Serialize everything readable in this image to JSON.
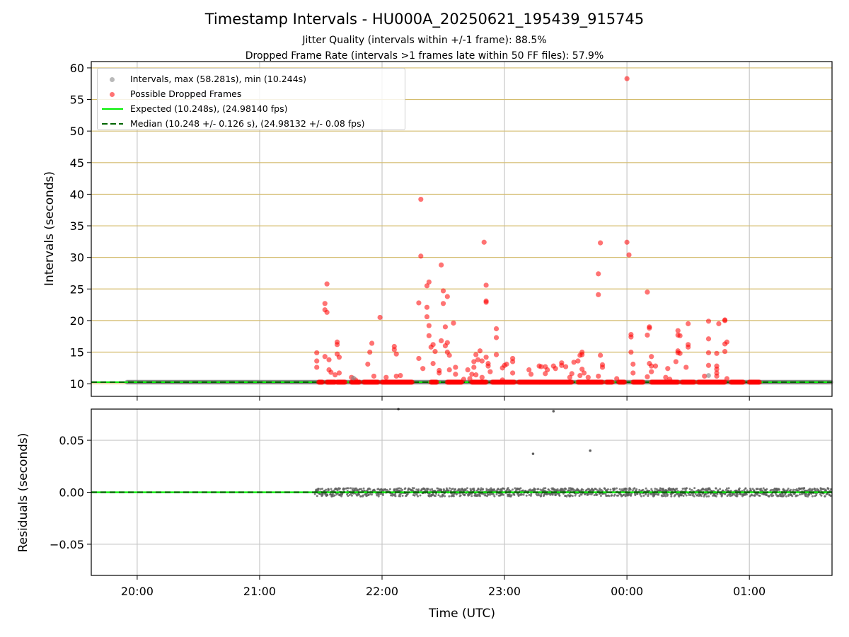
{
  "chart_data": [
    {
      "type": "scatter",
      "title": "Timestamp Intervals - HU000A_20250621_195439_915745",
      "subtitle_lines": [
        "Jitter Quality (intervals within +/-1 frame): 88.5%",
        "Dropped Frame Rate (intervals >1 frames late within 50 FF files): 57.9%"
      ],
      "xlabel": "",
      "ylabel": "Intervals (seconds)",
      "x_ticks": [
        "20:00",
        "21:00",
        "22:00",
        "23:00",
        "00:00",
        "01:00"
      ],
      "xlim": [
        "19:37:30",
        "01:40:30"
      ],
      "ylim": [
        8,
        61
      ],
      "y_ticks": [
        "10",
        "15",
        "20",
        "25",
        "30",
        "35",
        "40",
        "45",
        "50",
        "55",
        "60"
      ],
      "grid": true,
      "legend_position": "top-left",
      "legend": [
        "Intervals, max (58.281s), min (10.244s)",
        "Possible Dropped Frames",
        "Expected (10.248s), (24.98140 fps)",
        "Median (10.248 +/- 0.126 s), (24.98132 +/- 0.08 fps)"
      ],
      "colors": {
        "intervals": "#808080",
        "dropped": "#ff0000",
        "expected": "#00ee00",
        "median": "#006400",
        "band_grid": "#d4bc6e"
      },
      "baseline_interval": 10.248,
      "baseline_span": [
        "19:55",
        "01:40"
      ],
      "dropped_frame_bursts": [
        [
          "21:29",
          "21:31"
        ],
        [
          "21:33",
          "21:37"
        ],
        [
          "21:38",
          "21:42"
        ],
        [
          "21:45",
          "21:49"
        ],
        [
          "21:51",
          "21:58"
        ],
        [
          "22:00",
          "22:15"
        ],
        [
          "22:24",
          "22:27"
        ],
        [
          "22:32",
          "22:39"
        ],
        [
          "22:44",
          "22:51"
        ],
        [
          "22:54",
          "23:05"
        ],
        [
          "23:07",
          "23:33"
        ],
        [
          "23:36",
          "23:48"
        ],
        [
          "23:50",
          "23:53"
        ],
        [
          "23:56",
          "23:59"
        ],
        [
          "00:03",
          "00:08"
        ],
        [
          "00:12",
          "00:25"
        ],
        [
          "00:27",
          "00:33"
        ],
        [
          "00:35",
          "00:48"
        ],
        [
          "00:51",
          "00:57"
        ],
        [
          "01:00",
          "01:05"
        ]
      ],
      "dropped_frames": [
        [
          "21:28",
          14.9
        ],
        [
          "21:28",
          13.6
        ],
        [
          "21:28",
          12.6
        ],
        [
          "21:32",
          22.7
        ],
        [
          "21:32",
          21.7
        ],
        [
          "21:33",
          21.3
        ],
        [
          "21:33",
          25.8
        ],
        [
          "21:32",
          14.3
        ],
        [
          "21:34",
          13.8
        ],
        [
          "21:34",
          12.2
        ],
        [
          "21:35",
          11.8
        ],
        [
          "21:37",
          11.4
        ],
        [
          "21:38",
          16.6
        ],
        [
          "21:38",
          16.2
        ],
        [
          "21:38",
          14.7
        ],
        [
          "21:39",
          14.2
        ],
        [
          "21:39",
          11.7
        ],
        [
          "21:45",
          11.0
        ],
        [
          "21:47",
          10.6
        ],
        [
          "21:53",
          13.1
        ],
        [
          "21:54",
          15.0
        ],
        [
          "21:55",
          16.4
        ],
        [
          "21:56",
          11.2
        ],
        [
          "21:59",
          20.5
        ],
        [
          "22:02",
          11.0
        ],
        [
          "22:06",
          15.9
        ],
        [
          "22:06",
          15.4
        ],
        [
          "22:07",
          11.2
        ],
        [
          "22:07",
          14.7
        ],
        [
          "22:09",
          11.3
        ],
        [
          "22:18",
          22.8
        ],
        [
          "22:18",
          14.0
        ],
        [
          "22:19",
          39.2
        ],
        [
          "22:19",
          30.2
        ],
        [
          "22:20",
          12.4
        ],
        [
          "22:22",
          20.6
        ],
        [
          "22:22",
          25.5
        ],
        [
          "22:23",
          26.1
        ],
        [
          "22:22",
          22.1
        ],
        [
          "22:23",
          19.2
        ],
        [
          "22:23",
          17.6
        ],
        [
          "22:24",
          15.8
        ],
        [
          "22:25",
          16.2
        ],
        [
          "22:25",
          13.2
        ],
        [
          "22:26",
          15.1
        ],
        [
          "22:28",
          11.7
        ],
        [
          "22:28",
          12.1
        ],
        [
          "22:29",
          16.8
        ],
        [
          "22:29",
          28.8
        ],
        [
          "22:30",
          22.7
        ],
        [
          "22:30",
          24.7
        ],
        [
          "22:31",
          19.0
        ],
        [
          "22:31",
          16.0
        ],
        [
          "22:32",
          23.8
        ],
        [
          "22:32",
          16.5
        ],
        [
          "22:32",
          15.0
        ],
        [
          "22:33",
          14.5
        ],
        [
          "22:33",
          12.2
        ],
        [
          "22:35",
          19.6
        ],
        [
          "22:36",
          12.6
        ],
        [
          "22:36",
          11.5
        ],
        [
          "22:40",
          10.7
        ],
        [
          "22:42",
          12.2
        ],
        [
          "22:43",
          10.8
        ],
        [
          "22:44",
          11.5
        ],
        [
          "22:45",
          13.5
        ],
        [
          "22:45",
          12.6
        ],
        [
          "22:46",
          14.6
        ],
        [
          "22:46",
          11.4
        ],
        [
          "22:47",
          13.8
        ],
        [
          "22:48",
          15.2
        ],
        [
          "22:49",
          13.6
        ],
        [
          "22:49",
          11.0
        ],
        [
          "22:50",
          32.4
        ],
        [
          "22:51",
          25.6
        ],
        [
          "22:51",
          23.1
        ],
        [
          "22:51",
          22.9
        ],
        [
          "22:51",
          14.2
        ],
        [
          "22:52",
          13.2
        ],
        [
          "22:52",
          12.8
        ],
        [
          "22:53",
          11.9
        ],
        [
          "22:56",
          18.7
        ],
        [
          "22:56",
          17.3
        ],
        [
          "22:56",
          14.6
        ],
        [
          "22:59",
          10.6
        ],
        [
          "22:59",
          12.5
        ],
        [
          "23:00",
          12.9
        ],
        [
          "23:01",
          13.1
        ],
        [
          "23:04",
          14.0
        ],
        [
          "23:04",
          13.5
        ],
        [
          "23:04",
          11.7
        ],
        [
          "23:12",
          12.2
        ],
        [
          "23:13",
          11.5
        ],
        [
          "23:17",
          12.8
        ],
        [
          "23:18",
          12.7
        ],
        [
          "23:20",
          12.7
        ],
        [
          "23:20",
          11.6
        ],
        [
          "23:21",
          12.2
        ],
        [
          "23:24",
          12.8
        ],
        [
          "23:25",
          12.4
        ],
        [
          "23:28",
          13.3
        ],
        [
          "23:28",
          12.9
        ],
        [
          "23:30",
          12.7
        ],
        [
          "23:32",
          11.0
        ],
        [
          "23:33",
          11.6
        ],
        [
          "23:34",
          13.4
        ],
        [
          "23:36",
          13.6
        ],
        [
          "23:37",
          14.5
        ],
        [
          "23:38",
          15.0
        ],
        [
          "23:38",
          14.6
        ],
        [
          "23:37",
          11.3
        ],
        [
          "23:38",
          12.3
        ],
        [
          "23:39",
          11.7
        ],
        [
          "23:41",
          11.0
        ],
        [
          "23:46",
          27.4
        ],
        [
          "23:46",
          24.1
        ],
        [
          "23:47",
          32.3
        ],
        [
          "23:47",
          14.5
        ],
        [
          "23:48",
          13.0
        ],
        [
          "23:48",
          12.6
        ],
        [
          "23:46",
          11.2
        ],
        [
          "23:55",
          10.8
        ],
        [
          "00:00",
          58.3
        ],
        [
          "00:00",
          32.4
        ],
        [
          "00:01",
          30.4
        ],
        [
          "00:02",
          17.4
        ],
        [
          "00:02",
          17.8
        ],
        [
          "00:02",
          15.0
        ],
        [
          "00:03",
          13.1
        ],
        [
          "00:03",
          11.7
        ],
        [
          "00:10",
          24.5
        ],
        [
          "00:10",
          17.7
        ],
        [
          "00:10",
          11.1
        ],
        [
          "00:11",
          19.0
        ],
        [
          "00:11",
          18.8
        ],
        [
          "00:11",
          13.2
        ],
        [
          "00:12",
          14.3
        ],
        [
          "00:12",
          12.8
        ],
        [
          "00:12",
          11.9
        ],
        [
          "00:14",
          12.8
        ],
        [
          "00:19",
          11.0
        ],
        [
          "00:20",
          12.4
        ],
        [
          "00:21",
          10.7
        ],
        [
          "00:24",
          13.5
        ],
        [
          "00:25",
          15.2
        ],
        [
          "00:25",
          14.9
        ],
        [
          "00:25",
          18.4
        ],
        [
          "00:25",
          17.7
        ],
        [
          "00:26",
          17.6
        ],
        [
          "00:26",
          14.8
        ],
        [
          "00:29",
          12.6
        ],
        [
          "00:30",
          16.2
        ],
        [
          "00:30",
          15.8
        ],
        [
          "00:30",
          19.5
        ],
        [
          "00:38",
          11.2
        ],
        [
          "00:40",
          19.9
        ],
        [
          "00:40",
          17.1
        ],
        [
          "00:40",
          14.9
        ],
        [
          "00:40",
          12.9
        ],
        [
          "00:44",
          14.8
        ],
        [
          "00:44",
          12.8
        ],
        [
          "00:44",
          12.3
        ],
        [
          "00:44",
          11.7
        ],
        [
          "00:44",
          11.2
        ],
        [
          "00:45",
          19.5
        ],
        [
          "00:48",
          20.0
        ],
        [
          "00:48",
          20.1
        ],
        [
          "00:48",
          16.3
        ],
        [
          "00:49",
          16.6
        ],
        [
          "00:48",
          15.1
        ],
        [
          "00:49",
          10.8
        ]
      ],
      "interval_outliers": [
        [
          "21:46",
          10.9
        ],
        [
          "00:40",
          11.3
        ]
      ]
    },
    {
      "type": "scatter",
      "xlabel": "Time (UTC)",
      "ylabel": "Residuals (seconds)",
      "x_ticks": [
        "20:00",
        "21:00",
        "22:00",
        "23:00",
        "00:00",
        "01:00"
      ],
      "xlim": [
        "19:37:30",
        "01:40:30"
      ],
      "ylim": [
        -0.08,
        0.08
      ],
      "y_ticks": [
        "0.05",
        "0.00",
        "−0.05"
      ],
      "grid": true,
      "residual_outliers": [
        [
          "22:08",
          0.08
        ],
        [
          "23:14",
          0.037
        ],
        [
          "23:24",
          0.078
        ],
        [
          "23:42",
          0.04
        ]
      ],
      "residual_band_range": [
        "21:27",
        "01:40"
      ],
      "residual_scatter_spread": 0.004,
      "colors": {
        "residuals": "#606060",
        "zero_line": "#006400",
        "fit": "#00ee00"
      }
    }
  ]
}
